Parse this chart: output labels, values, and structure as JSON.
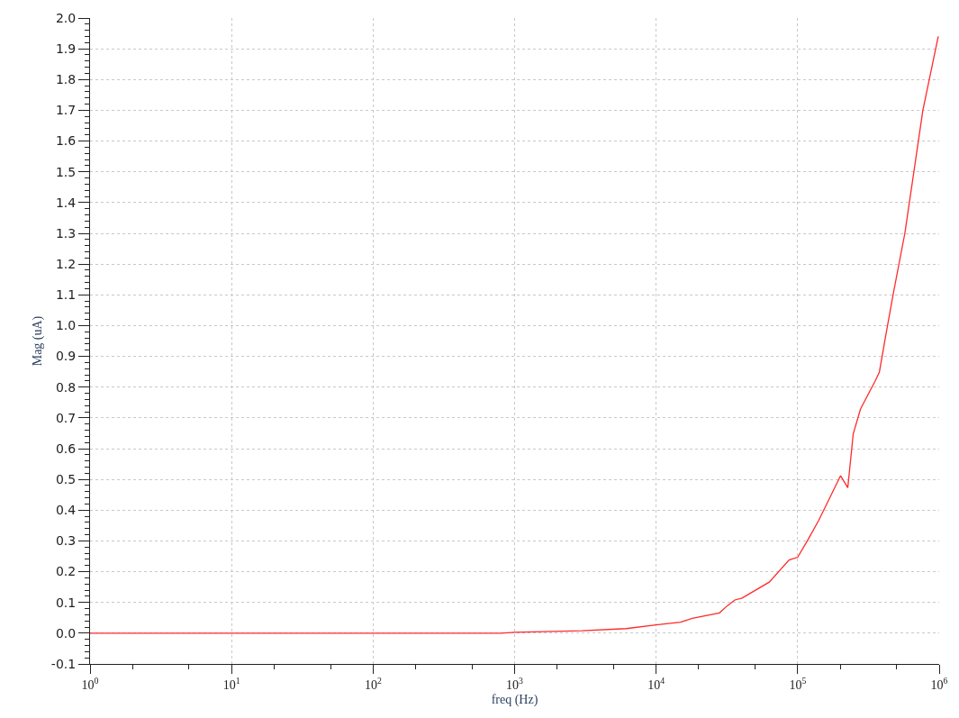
{
  "chart_data": {
    "type": "line",
    "xlabel": "freq (Hz)",
    "ylabel": "Mag (uA)",
    "log": "x",
    "grid": true,
    "line_style": "solid",
    "marker": "none",
    "x": [
      1,
      10,
      100,
      800,
      1000,
      3000,
      6150,
      10000,
      14860,
      18000,
      28000,
      32000,
      36000,
      40500,
      63000,
      87000,
      100000,
      117000,
      141000,
      201000,
      226000,
      247000,
      278000,
      352000,
      378000,
      420000,
      472000,
      572000,
      767000,
      985000
    ],
    "series": [
      {
        "color": "#ff2a2a",
        "values": [
          0.0,
          0.0,
          0.0,
          0.0,
          0.003,
          0.008,
          0.015,
          0.027,
          0.036,
          0.048,
          0.066,
          0.09,
          0.108,
          0.114,
          0.166,
          0.238,
          0.247,
          0.3,
          0.367,
          0.512,
          0.473,
          0.648,
          0.729,
          0.819,
          0.849,
          0.97,
          1.1,
          1.3,
          1.7,
          1.94
        ]
      }
    ],
    "xlim": [
      1,
      1000000
    ],
    "xticks": [
      {
        "value": 1,
        "label": "10$^{0}$"
      },
      {
        "value": 10,
        "label": "10$^{1}$"
      },
      {
        "value": 100,
        "label": "10$^{2}$"
      },
      {
        "value": 1000,
        "label": "10$^{3}$"
      },
      {
        "value": 10000,
        "label": "10$^{4}$"
      },
      {
        "value": 100000,
        "label": "10$^{5}$"
      },
      {
        "value": 1000000,
        "label": "10$^{6}$"
      }
    ],
    "ylim": [
      -0.1,
      2.0
    ],
    "yticks": [
      {
        "value": -0.1,
        "label": "-0.1"
      },
      {
        "value": 0,
        "label": "0.0"
      },
      {
        "value": 0.1,
        "label": "0.1"
      },
      {
        "value": 0.2,
        "label": "0.2"
      },
      {
        "value": 0.3,
        "label": "0.3"
      },
      {
        "value": 0.4,
        "label": "0.4"
      },
      {
        "value": 0.5,
        "label": "0.5"
      },
      {
        "value": 0.6,
        "label": "0.6"
      },
      {
        "value": 0.7,
        "label": "0.7"
      },
      {
        "value": 0.8,
        "label": "0.8"
      },
      {
        "value": 0.9,
        "label": "0.9"
      },
      {
        "value": 1.0,
        "label": "1.0"
      },
      {
        "value": 1.1,
        "label": "1.1"
      },
      {
        "value": 1.2,
        "label": "1.2"
      },
      {
        "value": 1.3,
        "label": "1.3"
      },
      {
        "value": 1.4,
        "label": "1.4"
      },
      {
        "value": 1.5,
        "label": "1.5"
      },
      {
        "value": 1.6,
        "label": "1.6"
      },
      {
        "value": 1.7,
        "label": "1.7"
      },
      {
        "value": 1.8,
        "label": "1.8"
      },
      {
        "value": 1.9,
        "label": "1.9"
      },
      {
        "value": 2.0,
        "label": "2.0"
      }
    ]
  }
}
